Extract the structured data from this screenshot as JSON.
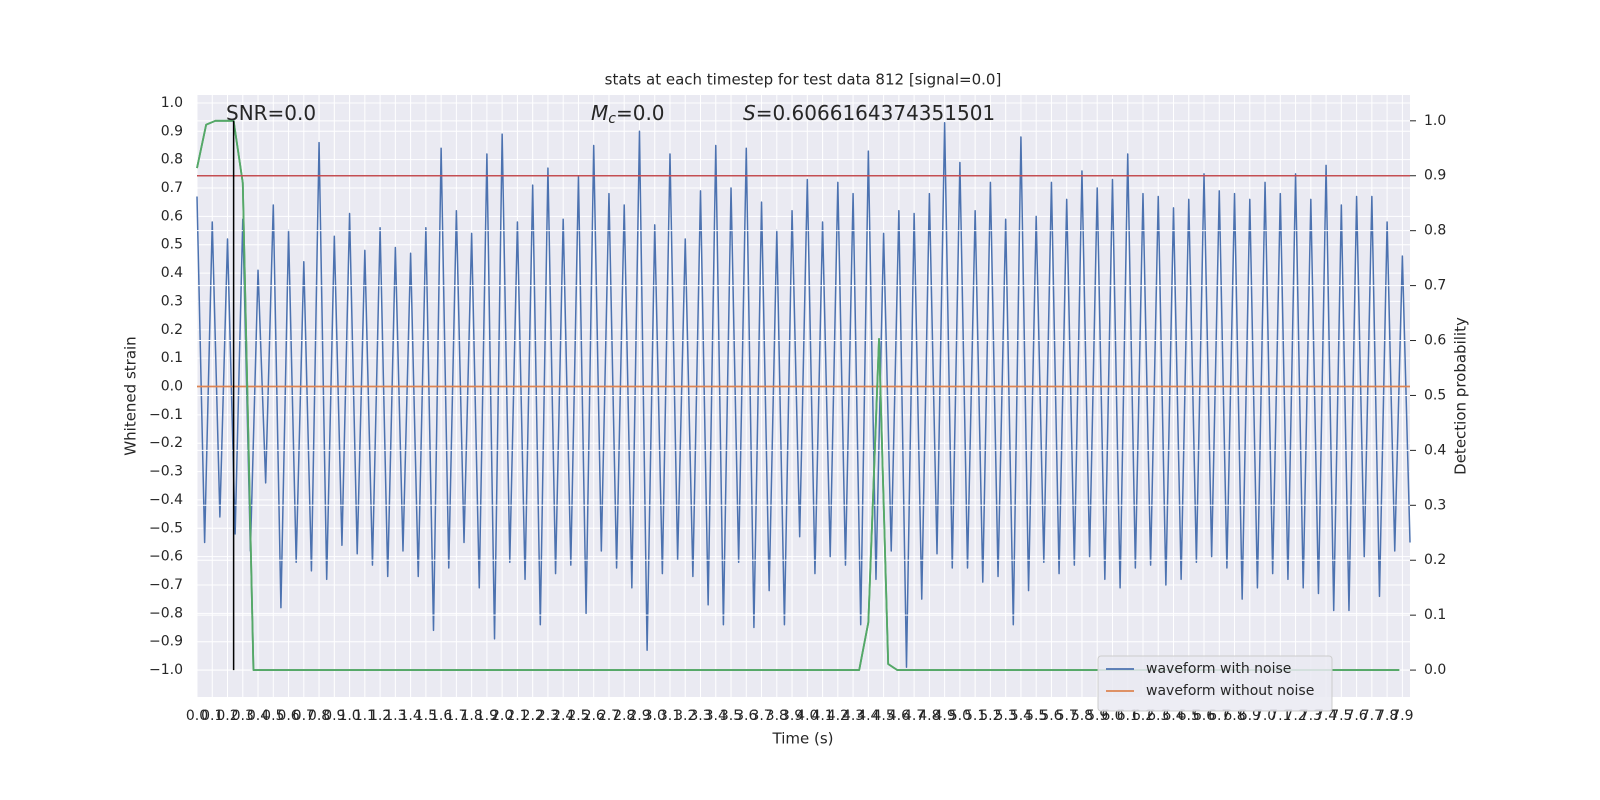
{
  "chart_data": {
    "type": "line",
    "title": "stats at each timestep for test data 812 [signal=0.0]",
    "xlabel": "Time (s)",
    "ylabel": "Whitened strain",
    "y2label": "Detection probability",
    "annotations": [
      {
        "text": "SNR=0.0"
      },
      {
        "symbol": "M",
        "subscript": "c",
        "text": "=0.0"
      },
      {
        "symbol": "S",
        "text": "=0.6066164374351501"
      }
    ],
    "xlim": [
      0,
      7.95
    ],
    "ylim": [
      -1.095,
      1.028
    ],
    "y2lim": [
      -0.049,
      1.047
    ],
    "grid": true,
    "legend": "lower right",
    "background": "#eaeaf2",
    "xticks": [
      {
        "value": 0,
        "label": "0.0"
      },
      0.1,
      0.2,
      0.3,
      0.4,
      0.5,
      0.6,
      0.7,
      0.8,
      0.9,
      {
        "value": 1,
        "label": "1.0"
      },
      1.1,
      1.2,
      1.3,
      1.4,
      1.5,
      1.6,
      1.7,
      1.8,
      1.9,
      {
        "value": 2,
        "label": "2.0"
      },
      2.1,
      2.2,
      2.3,
      2.4,
      2.5,
      2.6,
      2.7,
      2.8,
      2.9,
      {
        "value": 3,
        "label": "3.0"
      },
      3.1,
      3.2,
      3.3,
      3.4,
      3.5,
      3.6,
      3.7,
      3.8,
      3.9,
      {
        "value": 4,
        "label": "4.0"
      },
      4.1,
      4.2,
      4.3,
      4.4,
      4.5,
      4.6,
      4.7,
      4.8,
      4.9,
      {
        "value": 5,
        "label": "5.0"
      },
      5.1,
      5.2,
      5.3,
      5.4,
      5.5,
      5.6,
      5.7,
      5.8,
      5.9,
      {
        "value": 6,
        "label": "6.0"
      },
      6.1,
      6.2,
      6.3,
      6.4,
      6.5,
      6.6,
      6.7,
      6.8,
      6.9,
      {
        "value": 7,
        "label": "7.0"
      },
      7.1,
      7.2,
      7.3,
      7.4,
      7.5,
      7.6,
      7.7,
      7.8,
      7.9
    ],
    "yticks": [
      {
        "value": -1,
        "label": "−1.0"
      },
      {
        "value": -0.9,
        "label": "−0.9"
      },
      {
        "value": -0.8,
        "label": "−0.8"
      },
      {
        "value": -0.7,
        "label": "−0.7"
      },
      {
        "value": -0.6,
        "label": "−0.6"
      },
      {
        "value": -0.5,
        "label": "−0.5"
      },
      {
        "value": -0.4,
        "label": "−0.4"
      },
      {
        "value": -0.3,
        "label": "−0.3"
      },
      {
        "value": -0.2,
        "label": "−0.2"
      },
      {
        "value": -0.1,
        "label": "−0.1"
      },
      {
        "value": 0,
        "label": "0.0"
      },
      0.1,
      0.2,
      0.3,
      0.4,
      0.5,
      0.6,
      0.7,
      0.8,
      0.9,
      {
        "value": 1,
        "label": "1.0"
      }
    ],
    "y2ticks": [
      {
        "value": 0,
        "label": "0.0"
      },
      0.1,
      0.2,
      0.3,
      0.4,
      0.5,
      0.6,
      0.7,
      0.8,
      0.9,
      {
        "value": 1,
        "label": "1.0"
      }
    ],
    "series": [
      {
        "name": "waveform with noise",
        "color": "#4c72b0",
        "x": [
          0,
          0.05,
          0.1,
          0.15,
          0.2,
          0.25,
          0.3,
          0.35,
          0.4,
          0.45,
          0.5,
          0.55,
          0.6,
          0.65,
          0.7,
          0.75,
          0.8,
          0.85,
          0.9,
          0.95,
          1,
          1.05,
          1.1,
          1.15,
          1.2,
          1.25,
          1.3,
          1.35,
          1.4,
          1.45,
          1.5,
          1.55,
          1.6,
          1.65,
          1.7,
          1.75,
          1.8,
          1.85,
          1.9,
          1.95,
          2,
          2.05,
          2.1,
          2.15,
          2.2,
          2.25,
          2.3,
          2.35,
          2.4,
          2.45,
          2.5,
          2.55,
          2.6,
          2.65,
          2.7,
          2.75,
          2.8,
          2.85,
          2.9,
          2.95,
          3,
          3.05,
          3.1,
          3.15,
          3.2,
          3.25,
          3.3,
          3.35,
          3.4,
          3.45,
          3.5,
          3.55,
          3.6,
          3.65,
          3.7,
          3.75,
          3.8,
          3.85,
          3.9,
          3.95,
          4,
          4.05,
          4.1,
          4.15,
          4.2,
          4.25,
          4.3,
          4.35,
          4.4,
          4.45,
          4.5,
          4.55,
          4.6,
          4.65,
          4.7,
          4.75,
          4.8,
          4.85,
          4.9,
          4.95,
          5,
          5.05,
          5.1,
          5.15,
          5.2,
          5.25,
          5.3,
          5.35,
          5.4,
          5.45,
          5.5,
          5.55,
          5.6,
          5.65,
          5.7,
          5.75,
          5.8,
          5.85,
          5.9,
          5.95,
          6,
          6.05,
          6.1,
          6.15,
          6.2,
          6.25,
          6.3,
          6.35,
          6.4,
          6.45,
          6.5,
          6.55,
          6.6,
          6.65,
          6.7,
          6.75,
          6.8,
          6.85,
          6.9,
          6.95,
          7,
          7.05,
          7.1,
          7.15,
          7.2,
          7.25,
          7.3,
          7.35,
          7.4,
          7.45,
          7.5,
          7.55,
          7.6,
          7.65,
          7.7,
          7.75,
          7.8,
          7.85,
          7.9,
          7.95
        ],
        "values": [
          0.67,
          -0.55,
          0.58,
          -0.46,
          0.52,
          -0.52,
          0.59,
          -0.58,
          0.41,
          -0.34,
          0.64,
          -0.78,
          0.55,
          -0.62,
          0.44,
          -0.65,
          0.86,
          -0.68,
          0.53,
          -0.56,
          0.61,
          -0.59,
          0.48,
          -0.63,
          0.56,
          -0.67,
          0.49,
          -0.58,
          0.47,
          -0.67,
          0.56,
          -0.86,
          0.84,
          -0.64,
          0.62,
          -0.55,
          0.54,
          -0.71,
          0.82,
          -0.89,
          0.89,
          -0.62,
          0.58,
          -0.68,
          0.71,
          -0.84,
          0.77,
          -0.66,
          0.59,
          -0.63,
          0.74,
          -0.8,
          0.85,
          -0.58,
          0.68,
          -0.64,
          0.64,
          -0.71,
          0.9,
          -0.93,
          0.57,
          -0.66,
          0.82,
          -0.61,
          0.52,
          -0.67,
          0.69,
          -0.77,
          0.85,
          -0.84,
          0.7,
          -0.62,
          0.84,
          -0.85,
          0.65,
          -0.72,
          0.55,
          -0.84,
          0.62,
          -0.53,
          0.73,
          -0.66,
          0.58,
          -0.6,
          0.72,
          -0.63,
          0.68,
          -0.84,
          0.83,
          -0.68,
          0.54,
          -0.58,
          0.62,
          -0.99,
          0.61,
          -0.75,
          0.68,
          -0.59,
          0.93,
          -0.64,
          0.79,
          -0.64,
          0.62,
          -0.69,
          0.72,
          -0.67,
          0.59,
          -0.84,
          0.88,
          -0.72,
          0.6,
          -0.62,
          0.72,
          -0.66,
          0.66,
          -0.63,
          0.76,
          -0.6,
          0.7,
          -0.68,
          0.73,
          -0.71,
          0.82,
          -0.64,
          0.68,
          -0.63,
          0.67,
          -0.7,
          0.63,
          -0.68,
          0.66,
          -0.62,
          0.75,
          -0.6,
          0.69,
          -0.64,
          0.68,
          -0.75,
          0.66,
          -0.71,
          0.72,
          -0.66,
          0.68,
          -0.68,
          0.75,
          -0.71,
          0.66,
          -0.73,
          0.78,
          -0.79,
          0.64,
          -0.79,
          0.67,
          -0.6,
          0.67,
          -0.74,
          0.58,
          -0.58,
          0.46,
          -0.55
        ]
      },
      {
        "name": "waveform without noise",
        "color": "#dd8452",
        "x": [
          0,
          7.95
        ],
        "values": [
          0,
          0
        ]
      },
      {
        "color": "#55a868",
        "axis": "y2",
        "x": [
          0,
          0.06,
          0.12,
          0.24,
          0.3,
          0.37,
          4.34,
          4.4,
          4.47,
          4.53,
          4.59,
          7.88
        ],
        "values": [
          0.914,
          0.993,
          1.0,
          1.0,
          0.887,
          0,
          0,
          0.087,
          0.603,
          0.011,
          0,
          0
        ]
      }
    ],
    "hlines": [
      {
        "y": 0.9,
        "axis": "y2",
        "color": "#c44e52"
      }
    ],
    "vlines": [
      {
        "x": 0.24,
        "ymin": 0,
        "ymax": 1,
        "axis": "y2",
        "color": "#000000"
      }
    ]
  }
}
